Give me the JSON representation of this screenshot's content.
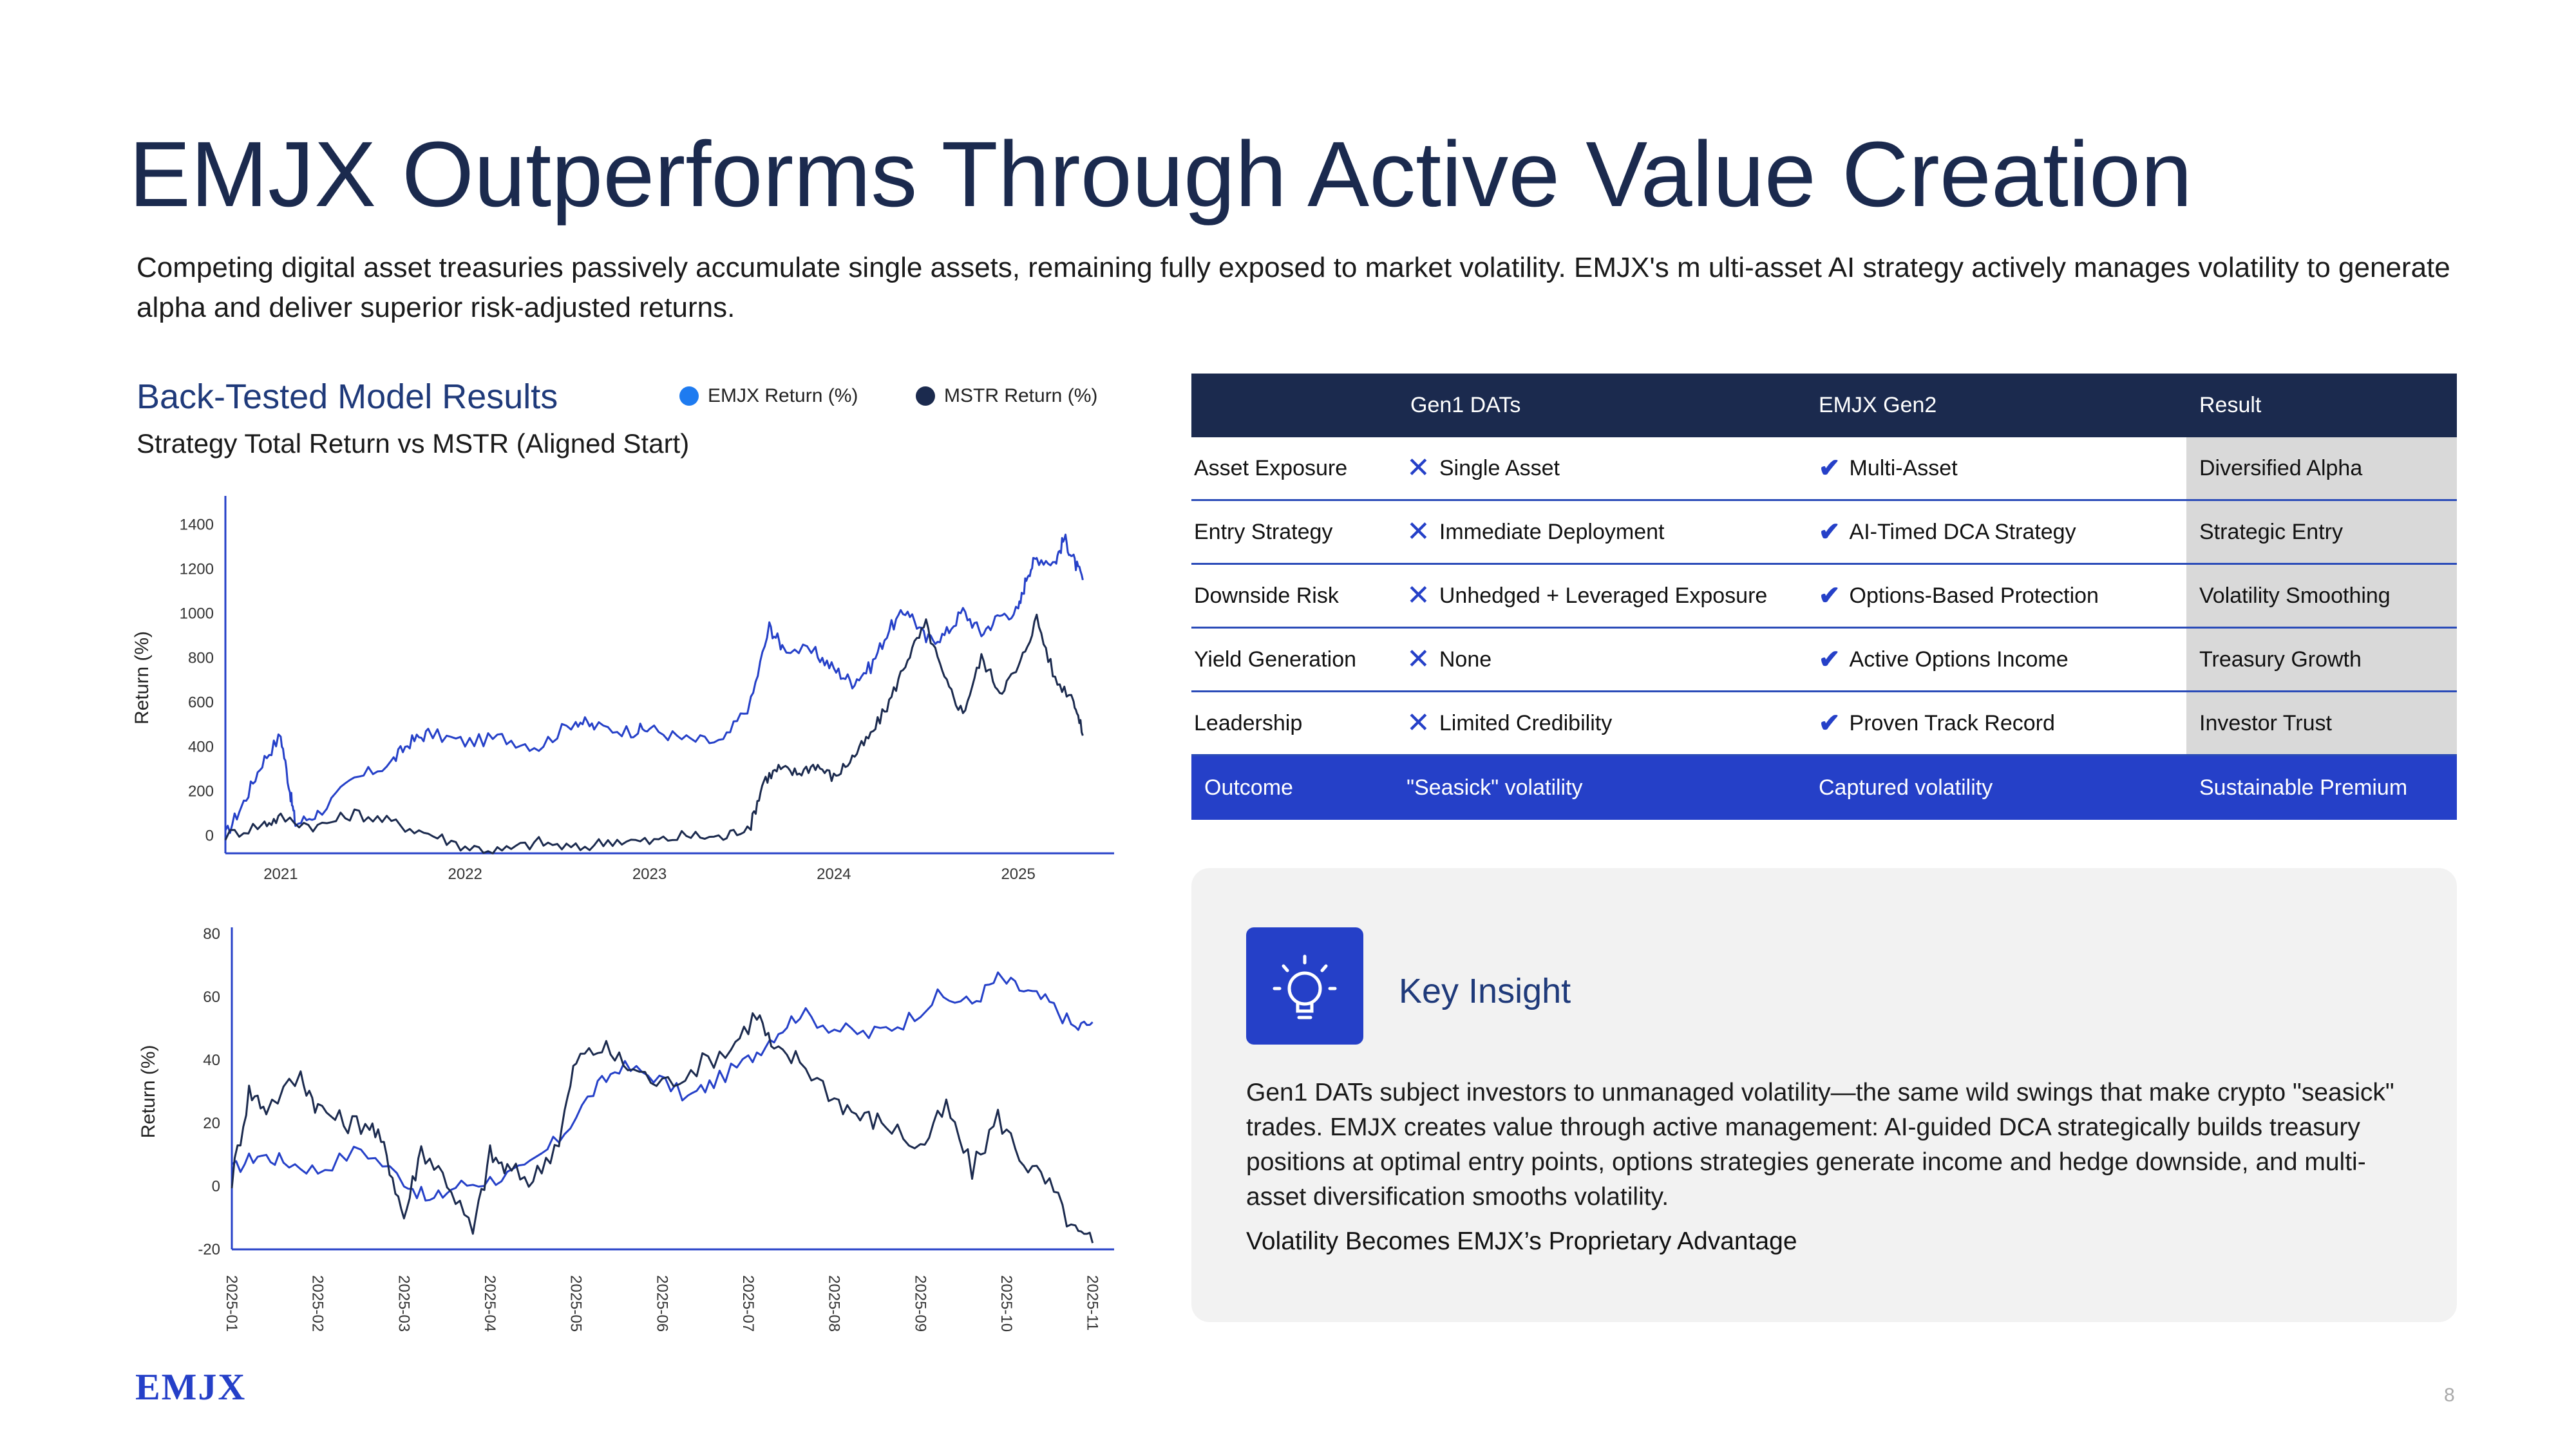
{
  "title": "EMJX Outperforms Through Active Value Creation",
  "subtitle": "Competing digital asset treasuries passively accumulate single assets, remaining fully exposed to market volatility. EMJX's m ulti-asset AI strategy actively manages volatility to generate alpha and deliver superior risk-adjusted returns.",
  "chart_section": {
    "title": "Back-Tested Model Results",
    "subtitle": "Strategy Total Return vs MSTR (Aligned Start)"
  },
  "colors": {
    "emjx": "#2540c8",
    "mstr": "#1b2a4e",
    "navy": "#1b2a4e",
    "accent": "#2540c8"
  },
  "chart_data": [
    {
      "type": "line",
      "title": "Strategy Total Return vs MSTR (Aligned Start)",
      "ylabel": "Return (%)",
      "xlabel": "",
      "ylim": [
        -80,
        1500
      ],
      "xlim": [
        2020.7,
        2025.45
      ],
      "yticks": [
        0,
        200,
        400,
        600,
        800,
        1000,
        1200,
        1400
      ],
      "xticks": [
        2021,
        2022,
        2023,
        2024,
        2025
      ],
      "legend": [
        "EMJX Return (%)",
        "MSTR Return (%)"
      ],
      "legend_placement": "top",
      "series": [
        {
          "name": "EMJX Return (%)",
          "color": "#2540c8",
          "x": [
            2020.7,
            2020.8,
            2020.9,
            2021.0,
            2021.05,
            2021.08,
            2021.2,
            2021.4,
            2021.6,
            2021.7,
            2021.8,
            2022.0,
            2022.2,
            2022.4,
            2022.6,
            2022.7,
            2022.9,
            2023.0,
            2023.2,
            2023.4,
            2023.55,
            2023.65,
            2023.72,
            2023.9,
            2024.0,
            2024.1,
            2024.2,
            2024.3,
            2024.4,
            2024.5,
            2024.6,
            2024.7,
            2024.8,
            2024.9,
            2025.0,
            2025.05,
            2025.1,
            2025.2,
            2025.25,
            2025.3,
            2025.35
          ],
          "values": [
            0,
            150,
            330,
            450,
            200,
            50,
            100,
            250,
            330,
            420,
            460,
            420,
            440,
            400,
            520,
            490,
            470,
            480,
            430,
            420,
            600,
            940,
            850,
            820,
            750,
            690,
            760,
            930,
            1020,
            880,
            900,
            1010,
            910,
            990,
            1010,
            1180,
            1250,
            1230,
            1340,
            1240,
            1150
          ]
        },
        {
          "name": "MSTR Return (%)",
          "color": "#1b2a4e",
          "x": [
            2020.7,
            2020.9,
            2021.0,
            2021.2,
            2021.4,
            2021.6,
            2021.8,
            2022.0,
            2022.2,
            2022.4,
            2022.6,
            2022.8,
            2023.0,
            2023.2,
            2023.4,
            2023.55,
            2023.62,
            2023.7,
            2023.8,
            2023.9,
            2024.0,
            2024.1,
            2024.2,
            2024.3,
            2024.4,
            2024.5,
            2024.6,
            2024.7,
            2024.8,
            2024.9,
            2025.0,
            2025.1,
            2025.2,
            2025.3,
            2025.35
          ],
          "values": [
            0,
            50,
            80,
            40,
            100,
            60,
            10,
            -50,
            -70,
            -30,
            -60,
            -20,
            -30,
            0,
            -10,
            50,
            250,
            300,
            280,
            320,
            260,
            350,
            450,
            600,
            800,
            950,
            700,
            550,
            800,
            650,
            750,
            980,
            700,
            620,
            450
          ]
        }
      ]
    },
    {
      "type": "line",
      "title": "",
      "ylabel": "Return (%)",
      "ylim": [
        -20,
        80
      ],
      "yticks": [
        -20,
        0,
        20,
        40,
        60,
        80
      ],
      "xticks": [
        "2025-01",
        "2025-02",
        "2025-03",
        "2025-04",
        "2025-05",
        "2025-06",
        "2025-07",
        "2025-08",
        "2025-09",
        "2025-10",
        "2025-11"
      ],
      "xlim": [
        0,
        10.1
      ],
      "series": [
        {
          "name": "EMJX Return (%)",
          "color": "#2540c8",
          "x": [
            0,
            0.3,
            0.6,
            1,
            1.5,
            2,
            2.3,
            2.6,
            3,
            3.4,
            3.8,
            4.2,
            4.5,
            4.9,
            5.3,
            5.6,
            6,
            6.3,
            6.6,
            7,
            7.4,
            7.8,
            8.2,
            8.6,
            8.9,
            9.2,
            9.5,
            9.8,
            10.0
          ],
          "values": [
            5,
            10,
            8,
            5,
            12,
            2,
            -5,
            0,
            2,
            5,
            15,
            30,
            38,
            35,
            28,
            33,
            40,
            48,
            55,
            50,
            48,
            52,
            60,
            58,
            66,
            62,
            58,
            50,
            52
          ]
        },
        {
          "name": "MSTR Return (%)",
          "color": "#1b2a4e",
          "x": [
            0,
            0.2,
            0.4,
            0.8,
            1,
            1.3,
            1.6,
            1.8,
            2,
            2.2,
            2.5,
            2.8,
            3,
            3.2,
            3.5,
            3.8,
            4.0,
            4.3,
            4.6,
            5,
            5.4,
            5.8,
            6.1,
            6.3,
            6.6,
            7,
            7.3,
            7.6,
            8,
            8.3,
            8.6,
            8.9,
            9.2,
            9.5,
            9.8,
            10.0
          ],
          "values": [
            2,
            30,
            25,
            35,
            25,
            20,
            20,
            10,
            -10,
            12,
            2,
            -15,
            10,
            5,
            2,
            15,
            40,
            44,
            38,
            32,
            38,
            44,
            55,
            42,
            40,
            28,
            22,
            20,
            12,
            25,
            5,
            22,
            8,
            0,
            -15,
            -18
          ]
        }
      ]
    }
  ],
  "table": {
    "headers": [
      "",
      "Gen1 DATs",
      "EMJX Gen2",
      "Result"
    ],
    "rows": [
      {
        "label": "Asset Exposure",
        "gen1": "Single Asset",
        "gen2": "Multi-Asset",
        "result": "Diversified Alpha"
      },
      {
        "label": "Entry Strategy",
        "gen1": "Immediate Deployment",
        "gen2": "AI-Timed DCA Strategy",
        "result": "Strategic Entry"
      },
      {
        "label": "Downside Risk",
        "gen1": "Unhedged + Leveraged Exposure",
        "gen2": "Options-Based Protection",
        "result": "Volatility Smoothing"
      },
      {
        "label": "Yield Generation",
        "gen1": "None",
        "gen2": "Active Options Income",
        "result": "Treasury Growth"
      },
      {
        "label": "Leadership",
        "gen1": "Limited Credibility",
        "gen2": "Proven Track Record",
        "result": "Investor Trust"
      }
    ],
    "outcome": {
      "label": "Outcome",
      "gen1": "\"Seasick\" volatility",
      "gen2": "Captured volatility",
      "result": "Sustainable Premium"
    }
  },
  "insight": {
    "icon": "lightbulb-icon",
    "title": "Key Insight",
    "body": "Gen1 DATs subject investors to unmanaged volatility—the same wild swings that make crypto \"seasick\" trades. EMJX creates value through active management: AI-guided DCA strategically builds treasury positions at optimal entry points, options strategies generate income and hedge downside, and multi-asset diversification smooths volatility.",
    "tagline": "Volatility Becomes EMJX’s Proprietary Advantage"
  },
  "footer": {
    "logo": "EMJX",
    "page_number": "8"
  }
}
